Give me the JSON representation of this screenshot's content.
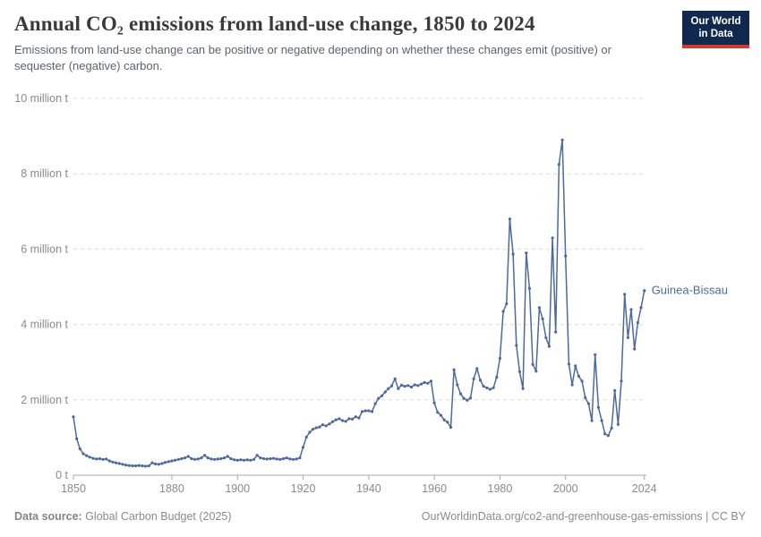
{
  "header": {
    "title": "Annual CO₂ emissions from land-use change, 1850 to 2024",
    "subtitle": "Emissions from land-use change can be positive or negative depending on whether these changes emit (positive) or sequester (negative) carbon.",
    "logo": {
      "line1": "Our World",
      "line2": "in Data"
    }
  },
  "footer": {
    "source_label": "Data source:",
    "source_text": " Global Carbon Budget (2025)",
    "link_text": "OurWorldinData.org/co2-and-greenhouse-gas-emissions | CC BY"
  },
  "chart_data": {
    "type": "line",
    "title": "Annual CO₂ emissions from land-use change, 1850 to 2024",
    "xlabel": "",
    "ylabel": "",
    "unit": "million t",
    "ylim": [
      0,
      10
    ],
    "xlim": [
      1850,
      2024
    ],
    "grid": "horizontal-dashed",
    "legend_position": "end-of-line-label",
    "entity_label": "Guinea-Bissau",
    "x_ticks": [
      1850,
      1880,
      1900,
      1920,
      1940,
      1960,
      1980,
      2000,
      2024
    ],
    "y_ticks": [
      {
        "v": 0,
        "label": "0 t"
      },
      {
        "v": 2,
        "label": "2 million t"
      },
      {
        "v": 4,
        "label": "4 million t"
      },
      {
        "v": 6,
        "label": "6 million t"
      },
      {
        "v": 8,
        "label": "8 million t"
      },
      {
        "v": 10,
        "label": "10 million t"
      }
    ],
    "series": [
      {
        "name": "Guinea-Bissau",
        "color": "#4c6a9c",
        "start_year": 1850,
        "values": [
          1.55,
          0.97,
          0.7,
          0.57,
          0.52,
          0.48,
          0.45,
          0.43,
          0.44,
          0.42,
          0.43,
          0.38,
          0.35,
          0.33,
          0.31,
          0.29,
          0.27,
          0.26,
          0.25,
          0.25,
          0.26,
          0.25,
          0.24,
          0.25,
          0.33,
          0.3,
          0.29,
          0.31,
          0.34,
          0.36,
          0.38,
          0.4,
          0.42,
          0.44,
          0.46,
          0.5,
          0.44,
          0.42,
          0.43,
          0.46,
          0.53,
          0.46,
          0.43,
          0.42,
          0.43,
          0.44,
          0.46,
          0.5,
          0.44,
          0.41,
          0.4,
          0.41,
          0.4,
          0.41,
          0.4,
          0.42,
          0.53,
          0.46,
          0.44,
          0.43,
          0.44,
          0.45,
          0.43,
          0.42,
          0.44,
          0.46,
          0.43,
          0.42,
          0.43,
          0.46,
          0.74,
          1.01,
          1.14,
          1.22,
          1.26,
          1.28,
          1.34,
          1.31,
          1.36,
          1.42,
          1.47,
          1.5,
          1.45,
          1.43,
          1.5,
          1.49,
          1.55,
          1.52,
          1.69,
          1.71,
          1.71,
          1.69,
          1.9,
          2.04,
          2.11,
          2.21,
          2.3,
          2.37,
          2.56,
          2.3,
          2.39,
          2.36,
          2.38,
          2.34,
          2.4,
          2.38,
          2.42,
          2.46,
          2.44,
          2.5,
          1.92,
          1.67,
          1.59,
          1.47,
          1.41,
          1.27,
          2.8,
          2.4,
          2.16,
          2.04,
          1.99,
          2.05,
          2.56,
          2.83,
          2.52,
          2.36,
          2.32,
          2.28,
          2.32,
          2.6,
          3.1,
          4.35,
          4.55,
          6.8,
          5.87,
          3.45,
          2.75,
          2.3,
          5.9,
          4.96,
          2.94,
          2.76,
          4.45,
          4.15,
          3.65,
          3.42,
          6.3,
          3.8,
          8.25,
          8.9,
          5.82,
          2.95,
          2.4,
          2.9,
          2.63,
          2.5,
          2.06,
          1.9,
          1.45,
          3.2,
          1.8,
          1.45,
          1.1,
          1.05,
          1.25,
          2.25,
          1.35,
          2.5,
          4.8,
          3.65,
          4.4,
          3.35,
          4.05,
          4.45,
          4.9
        ]
      }
    ]
  }
}
